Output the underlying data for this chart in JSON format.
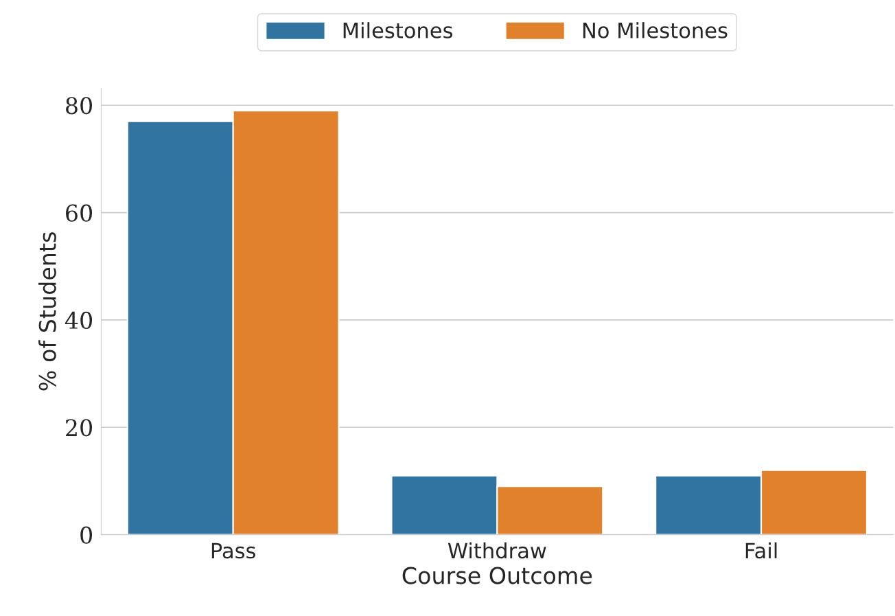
{
  "chart_data": {
    "type": "bar",
    "xlabel": "Course Outcome",
    "ylabel": "% of Students",
    "categories": [
      "Pass",
      "Withdraw",
      "Fail"
    ],
    "series": [
      {
        "name": "Milestones",
        "color": "#3274a1",
        "values": [
          77,
          11,
          11
        ]
      },
      {
        "name": "No Milestones",
        "color": "#e1812c",
        "values": [
          79,
          9,
          12
        ]
      }
    ],
    "ylim": [
      0,
      83.2
    ],
    "yticks": [
      0,
      20,
      40,
      60,
      80
    ],
    "grid": "y",
    "legend": "top"
  }
}
